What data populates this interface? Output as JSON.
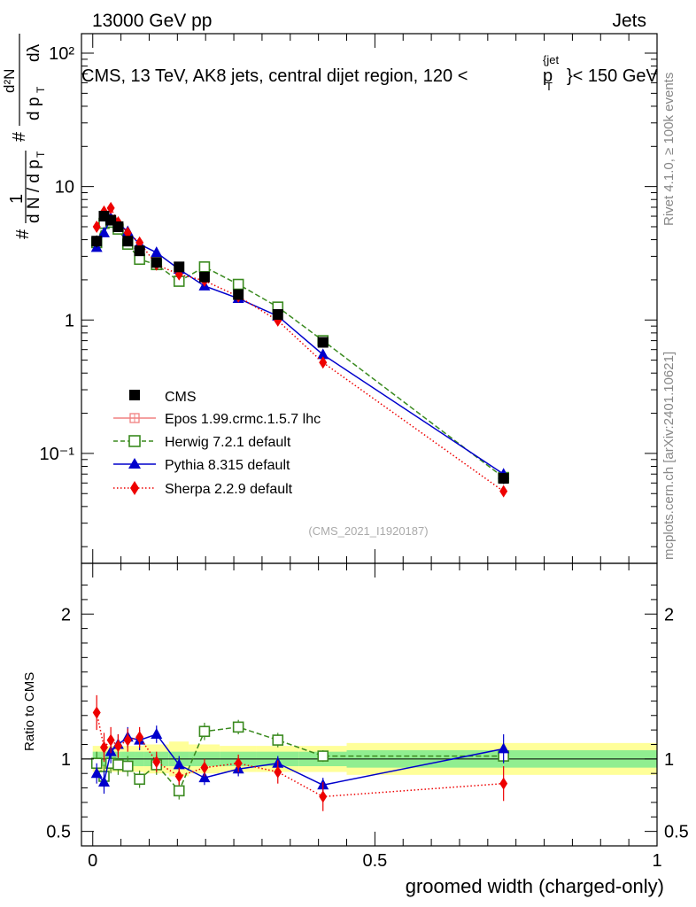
{
  "header": {
    "left": "13000 GeV pp",
    "right": "Jets",
    "title": "CMS, 13 TeV, AK8 jets, central dijet region, 120 <",
    "title_p": "p",
    "title_sup": "{jet",
    "title_sub": "T",
    "title_end": "}< 150 GeV"
  },
  "side": {
    "rivet": "Rivet 4.1.0, ≥ 100k events",
    "mcplots": "mcplots.cern.ch [arXiv:2401.10621]"
  },
  "watermark": "(CMS_2021_I1920187)",
  "ylabel_top": {
    "hash1": "#",
    "frac_num": "1",
    "frac_den": "d N / d p",
    "frac_den_sub": "T",
    "hash2": "#",
    "d2N": "d²N",
    "dpT": "d p",
    "dpT_sub": "T",
    "dlambda": "dλ"
  },
  "ratio_ylabel": "Ratio to CMS",
  "xlabel": "groomed width (charged-only)",
  "colors": {
    "data": "#000000",
    "epos": "#f08080",
    "herwig": "#3a8a1f",
    "pythia": "#0000cc",
    "sherpa": "#ee0000",
    "band_inner": "#90ee90",
    "band_outer": "#ffff99"
  },
  "chart_data": {
    "type": "scatter",
    "x_scale": "linear",
    "y_scale": "log",
    "xlim": [
      -0.02,
      1.0
    ],
    "ylim": [
      0.015,
      140
    ],
    "ratio_ylim": [
      0.4,
      2.35
    ],
    "x_ticks": [
      0,
      0.5,
      1
    ],
    "x_tick_labels": [
      "0",
      "0.5",
      "1"
    ],
    "y_ticks": [
      100,
      10,
      1,
      0.1
    ],
    "y_tick_labels": [
      "10²",
      "10",
      "1",
      "10⁻¹"
    ],
    "ratio_ticks": [
      2,
      1,
      0.5
    ],
    "ratio_tick_labels": [
      "2",
      "1",
      "0.5"
    ],
    "x": [
      0.007,
      0.02,
      0.032,
      0.045,
      0.062,
      0.083,
      0.113,
      0.153,
      0.198,
      0.258,
      0.328,
      0.408,
      0.728
    ],
    "band_edges": [
      0,
      0.013,
      0.025,
      0.038,
      0.05,
      0.075,
      0.09,
      0.135,
      0.17,
      0.225,
      0.29,
      0.365,
      0.45,
      1.0
    ],
    "band_inner_halfwidth": [
      0.05,
      0.05,
      0.05,
      0.05,
      0.05,
      0.05,
      0.05,
      0.05,
      0.05,
      0.05,
      0.05,
      0.05,
      0.06
    ],
    "band_outer_halfwidth": [
      0.09,
      0.09,
      0.09,
      0.09,
      0.09,
      0.09,
      0.1,
      0.12,
      0.1,
      0.09,
      0.09,
      0.09,
      0.11
    ],
    "series": [
      {
        "name": "CMS",
        "key": "data",
        "marker": "square-filled",
        "line": "none",
        "values": [
          3.9,
          6.0,
          5.6,
          5.0,
          3.9,
          3.3,
          2.7,
          2.5,
          2.1,
          1.55,
          1.1,
          0.68,
          0.065
        ],
        "errors": [
          0.4,
          0.5,
          0.4,
          0.3,
          0.3,
          0.2,
          0.2,
          0.15,
          0.12,
          0.1,
          0.08,
          0.05,
          0.006
        ]
      },
      {
        "name": "Epos 1.99.crmc.1.5.7 lhc",
        "key": "epos",
        "marker": "cross-square-open",
        "line": "solid",
        "values": [],
        "ratio": [],
        "errors": []
      },
      {
        "name": "Herwig 7.2.1 default",
        "key": "herwig",
        "marker": "square-open",
        "line": "dashed",
        "values": [
          3.8,
          5.3,
          5.4,
          4.8,
          3.7,
          2.85,
          2.6,
          1.95,
          2.5,
          1.85,
          1.25,
          0.7,
          0.066
        ],
        "ratio": [
          0.97,
          0.88,
          0.97,
          0.96,
          0.95,
          0.86,
          0.96,
          0.78,
          1.19,
          1.22,
          1.13,
          1.02,
          1.02
        ],
        "errors": [
          0.08,
          0.08,
          0.07,
          0.07,
          0.07,
          0.06,
          0.07,
          0.06,
          0.06,
          0.05,
          0.05,
          0.04,
          0.04
        ]
      },
      {
        "name": "Pythia 8.315 default",
        "key": "pythia",
        "marker": "triangle-filled",
        "line": "solid",
        "values": [
          3.5,
          4.5,
          5.8,
          5.3,
          4.6,
          3.7,
          3.2,
          2.4,
          1.8,
          1.45,
          1.07,
          0.55,
          0.07
        ],
        "ratio": [
          0.9,
          0.84,
          1.05,
          1.1,
          1.15,
          1.13,
          1.17,
          0.96,
          0.87,
          0.93,
          0.97,
          0.82,
          1.07
        ],
        "errors": [
          0.07,
          0.08,
          0.08,
          0.07,
          0.07,
          0.07,
          0.06,
          0.06,
          0.05,
          0.05,
          0.05,
          0.05,
          0.1
        ]
      },
      {
        "name": "Sherpa 2.2.9 default",
        "key": "sherpa",
        "marker": "diamond-filled",
        "line": "dotted",
        "values": [
          5.0,
          6.5,
          6.9,
          5.4,
          4.5,
          3.8,
          2.6,
          2.2,
          1.97,
          1.5,
          0.99,
          0.48,
          0.052
        ],
        "ratio": [
          1.32,
          1.08,
          1.13,
          1.09,
          1.13,
          1.15,
          0.98,
          0.88,
          0.94,
          0.97,
          0.91,
          0.74,
          0.83
        ],
        "errors": [
          0.12,
          0.1,
          0.09,
          0.08,
          0.08,
          0.07,
          0.07,
          0.06,
          0.06,
          0.06,
          0.08,
          0.1,
          0.12
        ]
      }
    ]
  }
}
